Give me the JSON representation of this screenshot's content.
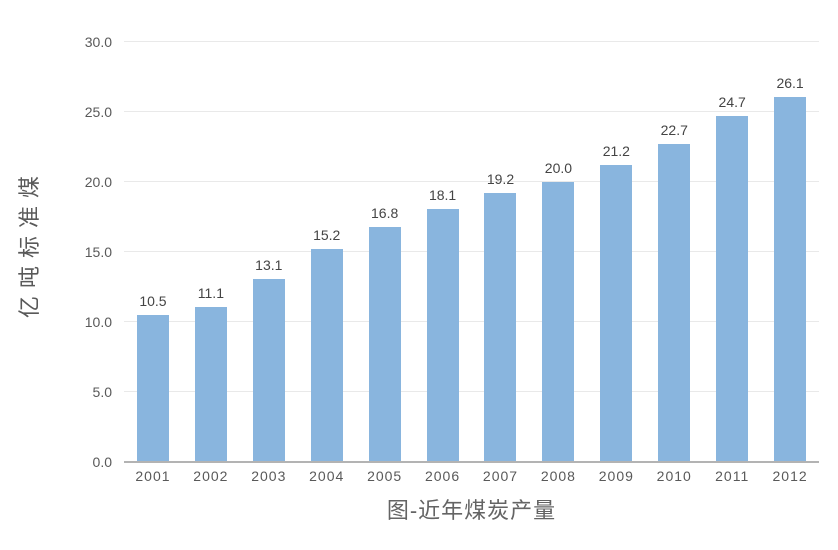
{
  "chart_data": {
    "type": "bar",
    "title": "图-近年煤炭产量",
    "ylabel": "亿吨标准煤",
    "xlabel": "",
    "categories": [
      "2001",
      "2002",
      "2003",
      "2004",
      "2005",
      "2006",
      "2007",
      "2008",
      "2009",
      "2010",
      "2011",
      "2012"
    ],
    "values": [
      10.5,
      11.1,
      13.1,
      15.2,
      16.8,
      18.1,
      19.2,
      20.0,
      21.2,
      22.7,
      24.7,
      26.1
    ],
    "value_labels": [
      "10.5",
      "11.1",
      "13.1",
      "15.2",
      "16.8",
      "18.1",
      "19.2",
      "20.0",
      "21.2",
      "22.7",
      "24.7",
      "26.1"
    ],
    "ylim": [
      0,
      30
    ],
    "yticks": [
      "0.0",
      "5.0",
      "10.0",
      "15.0",
      "20.0",
      "25.0",
      "30.0"
    ],
    "ytick_interval": 5,
    "grid": true,
    "legend": "none",
    "colors": {
      "bar": "#89B5DE",
      "gridline": "#E9E9E9",
      "axis_line": "#B3B3B3",
      "tick_label": "#595959",
      "value_label": "#444444",
      "title": "#646464"
    }
  }
}
